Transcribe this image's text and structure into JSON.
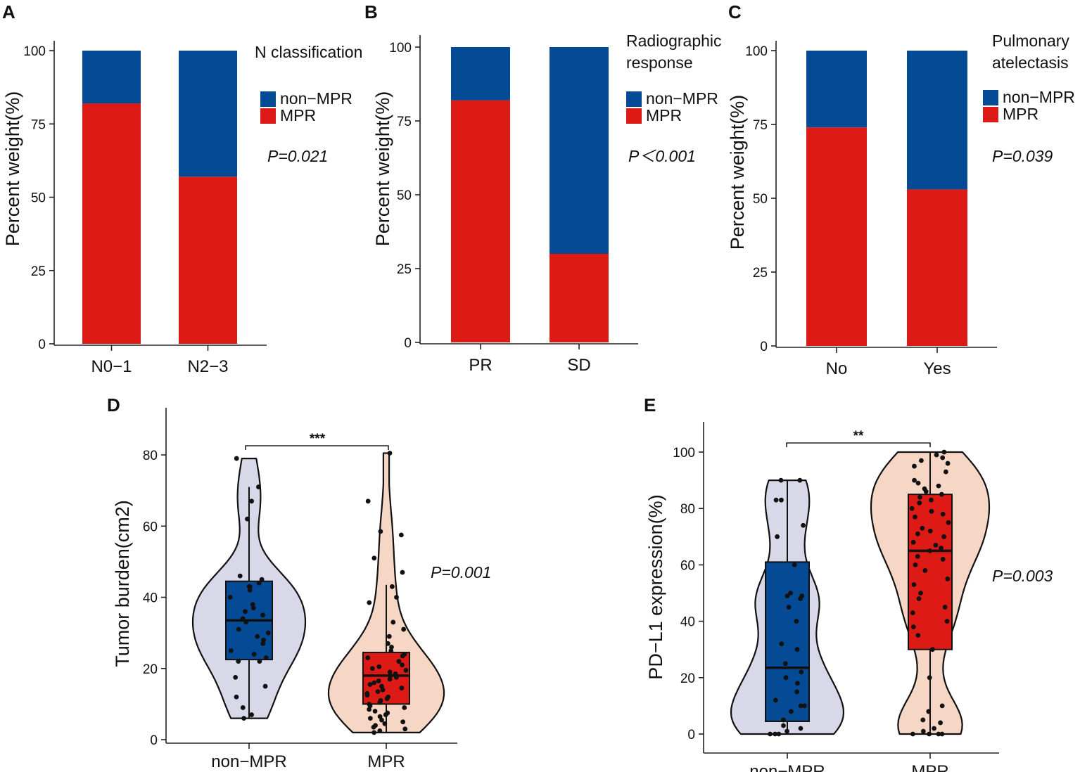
{
  "colors": {
    "mpr": "#de1a17",
    "non_mpr": "#044a94",
    "violin_non_mpr": "#d8d8e8",
    "violin_mpr": "#f6d6c4",
    "point": "#111111"
  },
  "chart_data": [
    {
      "panel": "A",
      "type": "bar",
      "stacked": true,
      "categories": [
        "N0−1",
        "N2−3"
      ],
      "series": [
        {
          "name": "MPR",
          "values": [
            82,
            57
          ]
        },
        {
          "name": "non−MPR",
          "values": [
            18,
            43
          ]
        }
      ],
      "ylabel": "Percent weight(%)",
      "ylim": [
        0,
        100
      ],
      "yticks": [
        0,
        25,
        50,
        75,
        100
      ],
      "legend_title": "N classification",
      "legend_labels": [
        "non−MPR",
        "MPR"
      ],
      "pvalue": "P=0.021"
    },
    {
      "panel": "B",
      "type": "bar",
      "stacked": true,
      "categories": [
        "PR",
        "SD"
      ],
      "series": [
        {
          "name": "MPR",
          "values": [
            82,
            30
          ]
        },
        {
          "name": "non−MPR",
          "values": [
            18,
            70
          ]
        }
      ],
      "ylabel": "Percent weight(%)",
      "ylim": [
        0,
        100
      ],
      "yticks": [
        0,
        25,
        50,
        75,
        100
      ],
      "legend_title": "Radiographic response",
      "legend_title_lines": [
        "Radiographic",
        "response"
      ],
      "legend_labels": [
        "non−MPR",
        "MPR"
      ],
      "pvalue": "P＜0.001"
    },
    {
      "panel": "C",
      "type": "bar",
      "stacked": true,
      "categories": [
        "No",
        "Yes"
      ],
      "series": [
        {
          "name": "MPR",
          "values": [
            74,
            53
          ]
        },
        {
          "name": "non−MPR",
          "values": [
            26,
            47
          ]
        }
      ],
      "ylabel": "Percent weight(%)",
      "ylim": [
        0,
        100
      ],
      "yticks": [
        0,
        25,
        50,
        75,
        100
      ],
      "legend_title": "Pulmonary atelectasis",
      "legend_title_lines": [
        "Pulmonary",
        "atelectasis"
      ],
      "legend_labels": [
        "non−MPR",
        "MPR"
      ],
      "pvalue": "P=0.039"
    },
    {
      "panel": "D",
      "type": "violin",
      "categories": [
        "non−MPR",
        "MPR"
      ],
      "ylabel": "Tumor burden(cm2)",
      "ylim": [
        0,
        90
      ],
      "yticks": [
        0,
        20,
        40,
        60,
        80
      ],
      "groups": [
        {
          "name": "non−MPR",
          "box": {
            "whisker_low": 6,
            "q1": 22.5,
            "median": 33.5,
            "q3": 44.5,
            "whisker_high": 71
          },
          "points": [
            79,
            71,
            67,
            62,
            46,
            45,
            44,
            43,
            43,
            42,
            40,
            38,
            37,
            36,
            35,
            34,
            33,
            31,
            30,
            29,
            28,
            27,
            25,
            24,
            23,
            22,
            22,
            17.5,
            15,
            12,
            9,
            7,
            6
          ]
        },
        {
          "name": "MPR",
          "box": {
            "whisker_low": 2,
            "q1": 10,
            "median": 18,
            "q3": 24.5,
            "whisker_high": 43.5
          },
          "points": [
            80.5,
            67,
            58.5,
            57.5,
            51,
            47,
            43,
            40,
            38.5,
            33,
            31,
            29,
            27,
            26,
            25,
            24,
            23.5,
            23,
            22,
            21,
            20.5,
            20,
            19.5,
            19,
            18.5,
            18,
            17.5,
            17,
            16.5,
            16,
            15.5,
            15,
            14.5,
            14,
            13.5,
            13,
            12.5,
            12,
            11.5,
            11,
            10.5,
            10,
            9.5,
            9,
            8.5,
            8,
            7.5,
            7,
            6.5,
            6,
            5.5,
            5,
            4.5,
            4,
            3.5,
            3,
            2.5,
            2
          ]
        }
      ],
      "significance": "***",
      "pvalue": "P=0.001"
    },
    {
      "panel": "E",
      "type": "violin",
      "categories": [
        "non−MPR",
        "MPR"
      ],
      "ylabel": "PD−L1 expression(%)",
      "ylim": [
        0,
        110
      ],
      "yticks": [
        0,
        20,
        40,
        60,
        80,
        100
      ],
      "groups": [
        {
          "name": "non−MPR",
          "box": {
            "whisker_low": 0,
            "q1": 4.5,
            "median": 23.5,
            "q3": 61,
            "whisker_high": 90
          },
          "points": [
            90,
            90,
            83,
            83,
            74,
            70,
            60,
            50,
            49,
            49,
            48,
            45,
            40,
            32,
            30,
            25,
            22,
            20,
            18,
            15,
            12,
            10,
            10,
            8,
            5,
            3,
            2,
            1,
            0,
            0,
            0
          ]
        },
        {
          "name": "MPR",
          "box": {
            "whisker_low": 0,
            "q1": 30,
            "median": 65,
            "q3": 85,
            "whisker_high": 100
          },
          "points": [
            100,
            99,
            98,
            97,
            96,
            95,
            93,
            90,
            89,
            88,
            87,
            86,
            85,
            84,
            83,
            82,
            80,
            79,
            78,
            77,
            75,
            73,
            72,
            71,
            70,
            68,
            67,
            66,
            65,
            63,
            62,
            60,
            58,
            55,
            53,
            50,
            48,
            45,
            43,
            40,
            38,
            35,
            30,
            20,
            10,
            8,
            5,
            4,
            2,
            1,
            0,
            0,
            0,
            0
          ]
        }
      ],
      "significance": "**",
      "pvalue": "P=0.003"
    }
  ]
}
